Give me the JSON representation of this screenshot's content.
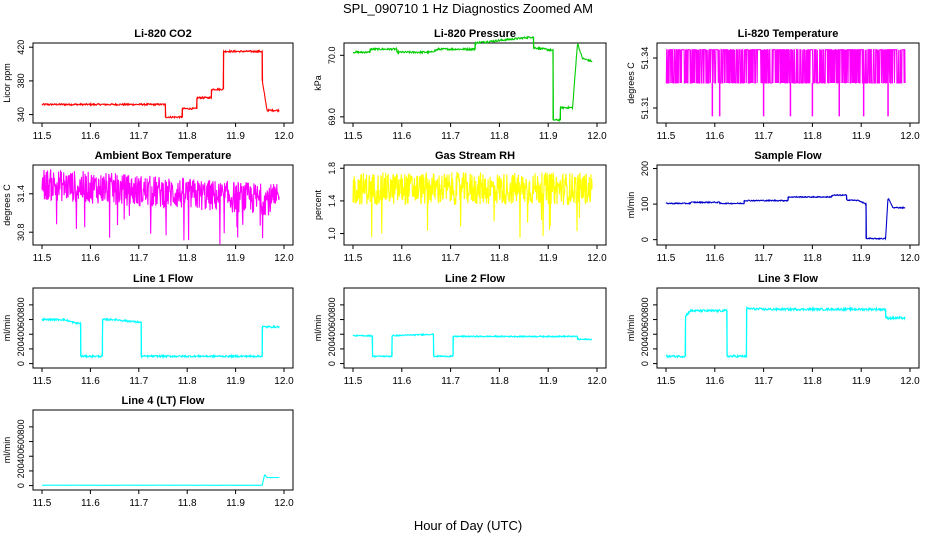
{
  "title": "SPL_090710  1 Hz Diagnostics Zoomed AM",
  "xlabel": "Hour of Day (UTC)",
  "chart_data": [
    {
      "type": "line",
      "title": "Li-820 CO2",
      "ylabel": "Licor ppm",
      "color": "#ff0000",
      "xlim": [
        11.5,
        12.0
      ],
      "ylim": [
        330,
        425
      ],
      "xticks": [
        11.5,
        11.6,
        11.7,
        11.8,
        11.9,
        12.0
      ],
      "xtick_labels": [
        "11.5",
        "11.6",
        "11.7",
        "11.8",
        "11.9",
        "12.0"
      ],
      "yticks": [
        340,
        380,
        420
      ],
      "ytick_labels": [
        "340",
        "380",
        "420"
      ],
      "noise": 1.0,
      "series": [
        {
          "x": [
            11.5,
            11.755,
            11.755,
            11.79,
            11.79,
            11.82,
            11.82,
            11.85,
            11.85,
            11.875,
            11.875,
            11.955,
            11.955,
            11.965,
            11.965,
            11.99
          ],
          "y": [
            352,
            352,
            337,
            337,
            347,
            347,
            360,
            360,
            370,
            370,
            415,
            415,
            380,
            345,
            345,
            345
          ]
        }
      ]
    },
    {
      "type": "line",
      "title": "Li-820 Pressure",
      "ylabel": "kPa",
      "color": "#00cc00",
      "xlim": [
        11.5,
        12.0
      ],
      "ylim": [
        68.9,
        70.2
      ],
      "xticks": [
        11.5,
        11.6,
        11.7,
        11.8,
        11.9,
        12.0
      ],
      "xtick_labels": [
        "11.5",
        "11.6",
        "11.7",
        "11.8",
        "11.9",
        "12.0"
      ],
      "yticks": [
        69.0,
        70.0
      ],
      "ytick_labels": [
        "69.0",
        "70.0"
      ],
      "noise": 0.015,
      "series": [
        {
          "x": [
            11.5,
            11.535,
            11.535,
            11.59,
            11.59,
            11.66,
            11.66,
            11.675,
            11.75,
            11.75,
            11.87,
            11.87,
            11.875,
            11.91,
            11.91,
            11.925,
            11.925,
            11.95,
            11.96,
            11.97,
            11.99
          ],
          "y": [
            70.05,
            70.05,
            70.1,
            70.1,
            70.05,
            70.05,
            70.05,
            70.1,
            70.1,
            70.2,
            70.3,
            70.12,
            70.12,
            70.08,
            68.95,
            68.95,
            69.15,
            69.15,
            70.2,
            69.95,
            69.9
          ]
        }
      ]
    },
    {
      "type": "line",
      "title": "Li-820 Temperature",
      "ylabel": "degrees C",
      "color": "#ff00ff",
      "xlim": [
        11.5,
        12.0
      ],
      "ylim": [
        51.301,
        51.349
      ],
      "xticks": [
        11.5,
        11.6,
        11.7,
        11.8,
        11.9,
        12.0
      ],
      "xtick_labels": [
        "11.5",
        "11.6",
        "11.7",
        "11.8",
        "11.9",
        "12.0"
      ],
      "yticks": [
        51.31,
        51.34
      ],
      "ytick_labels": [
        "51.31",
        "51.34"
      ],
      "base": 51.325,
      "flicker_high": 51.345,
      "spikes_x": [
        11.595,
        11.61,
        11.7,
        11.755,
        11.8,
        11.855,
        11.905,
        11.955
      ],
      "spike_low": 51.305
    },
    {
      "type": "line",
      "title": "Ambient Box Temperature",
      "ylabel": "degrees C",
      "color": "#ff00ff",
      "xlim": [
        11.5,
        12.0
      ],
      "ylim": [
        30.6,
        31.85
      ],
      "xticks": [
        11.5,
        11.6,
        11.7,
        11.8,
        11.9,
        12.0
      ],
      "xtick_labels": [
        "11.5",
        "11.6",
        "11.7",
        "11.8",
        "11.9",
        "12.0"
      ],
      "yticks": [
        30.8,
        31.4
      ],
      "ytick_labels": [
        "30.8",
        "31.4"
      ],
      "trend_x": [
        11.5,
        11.99
      ],
      "trend_y": [
        31.55,
        31.3
      ],
      "noise": 0.25
    },
    {
      "type": "line",
      "title": "Gas Stream RH",
      "ylabel": "percent",
      "color": "#ffff00",
      "xlim": [
        11.5,
        12.0
      ],
      "ylim": [
        0.86,
        1.84
      ],
      "xticks": [
        11.5,
        11.6,
        11.7,
        11.8,
        11.9,
        12.0
      ],
      "xtick_labels": [
        "11.5",
        "11.6",
        "11.7",
        "11.8",
        "11.9",
        "12.0"
      ],
      "yticks": [
        1.0,
        1.4,
        1.8
      ],
      "ytick_labels": [
        "1.0",
        "1.4",
        "1.8"
      ],
      "trend_x": [
        11.5,
        11.99
      ],
      "trend_y": [
        1.55,
        1.55
      ],
      "noise": 0.2
    },
    {
      "type": "line",
      "title": "Sample Flow",
      "ylabel": "ml/min",
      "color": "#0000cc",
      "xlim": [
        11.5,
        12.0
      ],
      "ylim": [
        -15,
        210
      ],
      "xticks": [
        11.5,
        11.6,
        11.7,
        11.8,
        11.9,
        12.0
      ],
      "xtick_labels": [
        "11.5",
        "11.6",
        "11.7",
        "11.8",
        "11.9",
        "12.0"
      ],
      "yticks": [
        0,
        100,
        200
      ],
      "ytick_labels": [
        "0",
        "100",
        "200"
      ],
      "noise": 1.5,
      "series": [
        {
          "x": [
            11.5,
            11.55,
            11.55,
            11.61,
            11.61,
            11.66,
            11.66,
            11.75,
            11.75,
            11.84,
            11.84,
            11.87,
            11.87,
            11.895,
            11.91,
            11.91,
            11.945,
            11.95,
            11.955,
            11.965,
            11.99
          ],
          "y": [
            102,
            102,
            105,
            105,
            102,
            102,
            110,
            110,
            120,
            120,
            125,
            125,
            112,
            110,
            100,
            3,
            3,
            3,
            118,
            90,
            90
          ]
        }
      ]
    },
    {
      "type": "line",
      "title": "Line 1 Flow",
      "ylabel": "ml/min",
      "color": "#00ffff",
      "xlim": [
        11.5,
        12.0
      ],
      "ylim": [
        -60,
        1030
      ],
      "xticks": [
        11.5,
        11.6,
        11.7,
        11.8,
        11.9,
        12.0
      ],
      "xtick_labels": [
        "11.5",
        "11.6",
        "11.7",
        "11.8",
        "11.9",
        "12.0"
      ],
      "yticks": [
        0,
        200,
        400,
        600,
        800
      ],
      "ytick_labels": [
        "0",
        "200",
        "400",
        "600",
        "800"
      ],
      "noise": 12,
      "series": [
        {
          "x": [
            11.5,
            11.545,
            11.57,
            11.58,
            11.58,
            11.625,
            11.625,
            11.65,
            11.705,
            11.705,
            11.955,
            11.955,
            11.99
          ],
          "y": [
            600,
            600,
            550,
            550,
            100,
            100,
            600,
            600,
            560,
            100,
            100,
            500,
            500
          ]
        }
      ]
    },
    {
      "type": "line",
      "title": "Line 2 Flow",
      "ylabel": "ml/min",
      "color": "#00ffff",
      "xlim": [
        11.5,
        12.0
      ],
      "ylim": [
        -60,
        1030
      ],
      "xticks": [
        11.5,
        11.6,
        11.7,
        11.8,
        11.9,
        12.0
      ],
      "xtick_labels": [
        "11.5",
        "11.6",
        "11.7",
        "11.8",
        "11.9",
        "12.0"
      ],
      "yticks": [
        0,
        200,
        400,
        600,
        800
      ],
      "ytick_labels": [
        "0",
        "200",
        "400",
        "600",
        "800"
      ],
      "noise": 8,
      "series": [
        {
          "x": [
            11.5,
            11.54,
            11.54,
            11.58,
            11.58,
            11.665,
            11.665,
            11.705,
            11.705,
            11.96,
            11.96,
            11.99
          ],
          "y": [
            380,
            380,
            100,
            100,
            380,
            400,
            100,
            100,
            370,
            370,
            330,
            330
          ]
        }
      ]
    },
    {
      "type": "line",
      "title": "Line 3 Flow",
      "ylabel": "ml/min",
      "color": "#00ffff",
      "xlim": [
        11.5,
        12.0
      ],
      "ylim": [
        -60,
        1030
      ],
      "xticks": [
        11.5,
        11.6,
        11.7,
        11.8,
        11.9,
        12.0
      ],
      "xtick_labels": [
        "11.5",
        "11.6",
        "11.7",
        "11.8",
        "11.9",
        "12.0"
      ],
      "yticks": [
        0,
        200,
        400,
        600,
        800
      ],
      "ytick_labels": [
        "0",
        "200",
        "400",
        "600",
        "800"
      ],
      "noise": 15,
      "series": [
        {
          "x": [
            11.5,
            11.54,
            11.54,
            11.55,
            11.62,
            11.625,
            11.625,
            11.665,
            11.665,
            11.7,
            11.95,
            11.95,
            11.99
          ],
          "y": [
            100,
            100,
            650,
            720,
            720,
            720,
            100,
            100,
            750,
            740,
            740,
            620,
            620
          ]
        }
      ]
    },
    {
      "type": "line",
      "title": "Line 4 (LT) Flow",
      "ylabel": "ml/min",
      "color": "#00ffff",
      "xlim": [
        11.5,
        12.0
      ],
      "ylim": [
        -60,
        1030
      ],
      "xticks": [
        11.5,
        11.6,
        11.7,
        11.8,
        11.9,
        12.0
      ],
      "xtick_labels": [
        "11.5",
        "11.6",
        "11.7",
        "11.8",
        "11.9",
        "12.0"
      ],
      "yticks": [
        0,
        200,
        400,
        600,
        800
      ],
      "ytick_labels": [
        "0",
        "200",
        "400",
        "600",
        "800"
      ],
      "noise": 1,
      "series": [
        {
          "x": [
            11.5,
            11.955,
            11.96,
            11.965,
            11.99
          ],
          "y": [
            5,
            5,
            150,
            110,
            110
          ]
        }
      ]
    }
  ]
}
